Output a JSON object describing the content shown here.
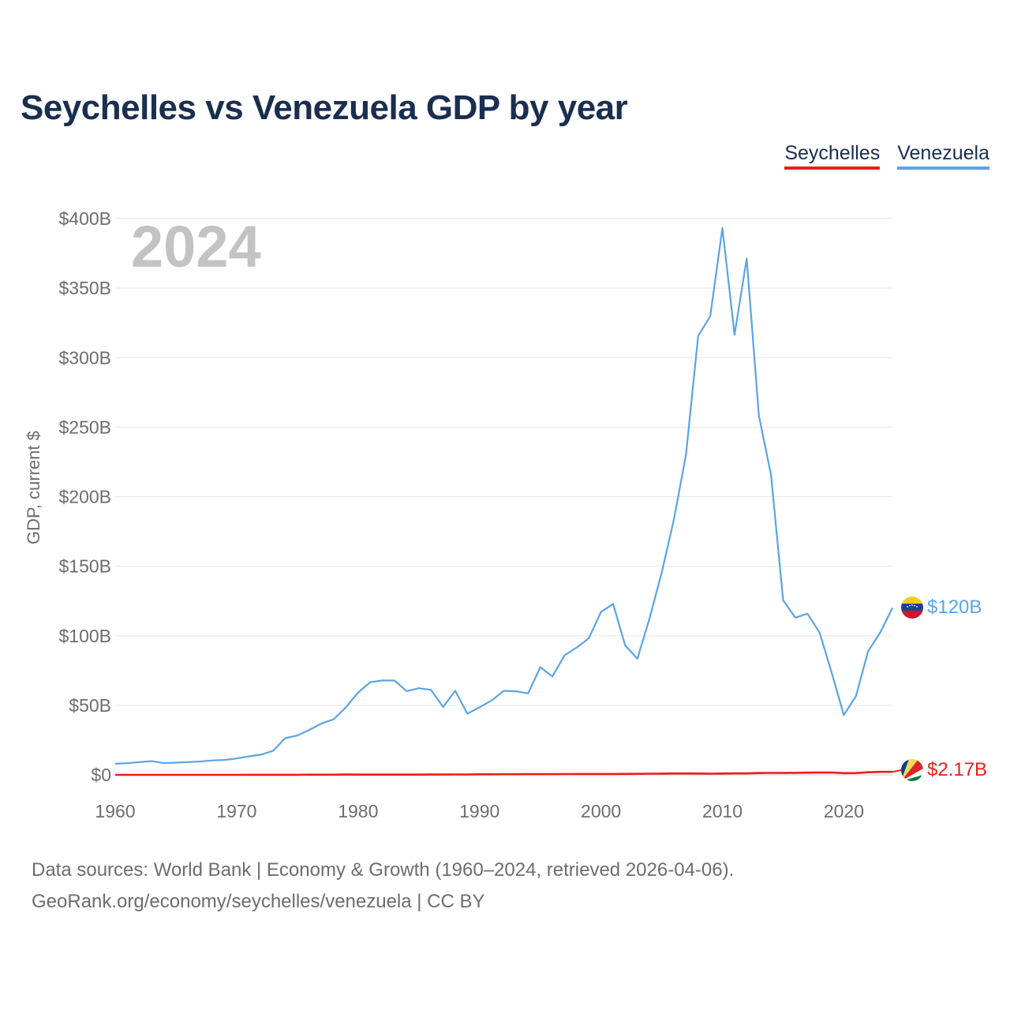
{
  "title": "Seychelles vs Venezuela GDP by year",
  "legend": [
    {
      "name": "Seychelles",
      "color": "#ee1c1c"
    },
    {
      "name": "Venezuela",
      "color": "#5ba4e5"
    }
  ],
  "footer": {
    "line1": "Data sources: World Bank | Economy & Growth (1960–2024, retrieved 2026-04-06).",
    "line2": "GeoRank.org/economy/seychelles/venezuela | CC BY"
  },
  "chart_data": {
    "type": "line",
    "year_label": "2024",
    "ylabel": "GDP, current $",
    "xlim": [
      1960,
      2024
    ],
    "ylim": [
      0,
      400
    ],
    "unit": "billion USD",
    "xticks": [
      1960,
      1970,
      1980,
      1990,
      2000,
      2010,
      2020
    ],
    "xtick_labels": [
      "1960",
      "1970",
      "1980",
      "1990",
      "2000",
      "2010",
      "2020"
    ],
    "yticks": [
      0,
      50,
      100,
      150,
      200,
      250,
      300,
      350,
      400
    ],
    "ytick_labels": [
      "$0",
      "$50B",
      "$100B",
      "$150B",
      "$200B",
      "$250B",
      "$300B",
      "$350B",
      "$400B"
    ],
    "x": [
      1960,
      1961,
      1962,
      1963,
      1964,
      1965,
      1966,
      1967,
      1968,
      1969,
      1970,
      1971,
      1972,
      1973,
      1974,
      1975,
      1976,
      1977,
      1978,
      1979,
      1980,
      1981,
      1982,
      1983,
      1984,
      1985,
      1986,
      1987,
      1988,
      1989,
      1990,
      1991,
      1992,
      1993,
      1994,
      1995,
      1996,
      1997,
      1998,
      1999,
      2000,
      2001,
      2002,
      2003,
      2004,
      2005,
      2006,
      2007,
      2008,
      2009,
      2010,
      2011,
      2012,
      2013,
      2014,
      2015,
      2016,
      2017,
      2018,
      2019,
      2020,
      2021,
      2022,
      2023,
      2024
    ],
    "series": [
      {
        "name": "Venezuela",
        "color": "#5ba4e5",
        "end_label": "$120B",
        "values": [
          8,
          8.4,
          9.2,
          9.9,
          8.4,
          8.8,
          9.2,
          9.6,
          10.4,
          10.7,
          11.8,
          13.3,
          14.5,
          17.3,
          26.4,
          28.3,
          32.4,
          37,
          40,
          48.6,
          59.2,
          66.6,
          67.9,
          67.8,
          60.2,
          62.3,
          61.1,
          48.8,
          60.5,
          44,
          48.6,
          53.5,
          60.4,
          60.1,
          58.6,
          77.4,
          70.8,
          86,
          91.5,
          98.2,
          117.1,
          122.9,
          92.9,
          83.6,
          112.5,
          145.5,
          183.5,
          230.4,
          315.6,
          329.8,
          393.2,
          316.5,
          371.3,
          258.5,
          215.8,
          125.5,
          113,
          115.9,
          102.3,
          73.4,
          43,
          56.6,
          88.9,
          102.4,
          120
        ]
      },
      {
        "name": "Seychelles",
        "color": "#ee1c1c",
        "end_label": "$2.17B",
        "values": [
          0.01,
          0.01,
          0.01,
          0.01,
          0.01,
          0.01,
          0.01,
          0.01,
          0.02,
          0.02,
          0.02,
          0.03,
          0.04,
          0.05,
          0.06,
          0.07,
          0.09,
          0.1,
          0.14,
          0.2,
          0.15,
          0.15,
          0.15,
          0.15,
          0.15,
          0.17,
          0.2,
          0.25,
          0.29,
          0.31,
          0.37,
          0.37,
          0.43,
          0.47,
          0.49,
          0.51,
          0.5,
          0.56,
          0.61,
          0.62,
          0.61,
          0.62,
          0.7,
          0.71,
          0.84,
          0.92,
          1.02,
          1.03,
          0.97,
          0.85,
          0.97,
          1.07,
          1.06,
          1.33,
          1.4,
          1.38,
          1.47,
          1.59,
          1.67,
          1.7,
          1.24,
          1.31,
          1.86,
          2.16,
          2.17
        ]
      }
    ]
  }
}
